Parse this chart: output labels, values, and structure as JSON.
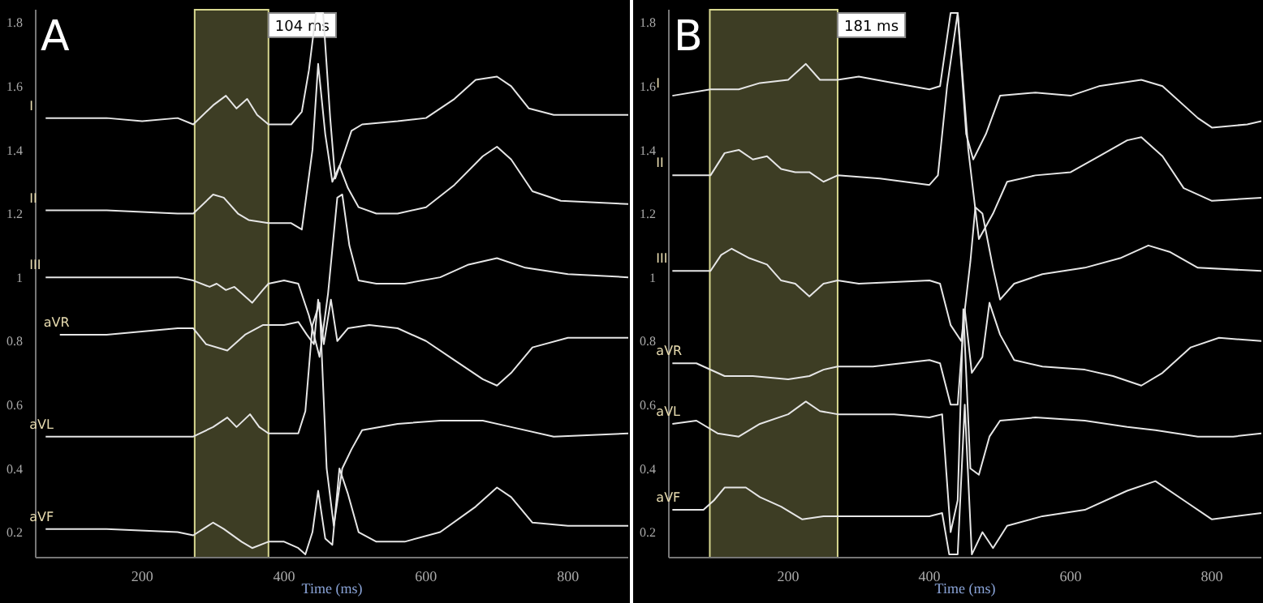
{
  "chart_data": [
    {
      "type": "line",
      "title": "A",
      "xlabel": "Time (ms)",
      "xlim": [
        50,
        885
      ],
      "xticks": [
        200,
        400,
        600,
        800
      ],
      "ylim": [
        0.12,
        1.84
      ],
      "yticks": [
        0.2,
        0.4,
        0.6,
        0.8,
        1,
        1.2,
        1.4,
        1.6,
        1.8
      ],
      "bands": [
        {
          "axis": "x",
          "from": 274,
          "to": 378,
          "label": "104 ms",
          "color": "#3d3d24"
        }
      ],
      "series": [
        {
          "name": "I",
          "color": "#e6e6e6",
          "x": [
            64,
            150,
            200,
            250,
            272,
            300,
            318,
            333,
            348,
            362,
            378,
            410,
            425,
            435,
            445,
            455,
            465,
            472,
            480,
            495,
            510,
            560,
            600,
            640,
            670,
            700,
            720,
            745,
            780,
            830,
            885
          ],
          "values": [
            1.5,
            1.5,
            1.49,
            1.5,
            1.48,
            1.54,
            1.57,
            1.53,
            1.56,
            1.51,
            1.48,
            1.48,
            1.52,
            1.65,
            1.83,
            1.83,
            1.5,
            1.31,
            1.36,
            1.46,
            1.48,
            1.49,
            1.5,
            1.56,
            1.62,
            1.63,
            1.6,
            1.53,
            1.51,
            1.51,
            1.51
          ]
        },
        {
          "name": "II",
          "color": "#e6e6e6",
          "x": [
            64,
            150,
            250,
            272,
            300,
            315,
            335,
            350,
            378,
            410,
            425,
            440,
            448,
            458,
            468,
            478,
            490,
            505,
            530,
            560,
            600,
            640,
            680,
            700,
            720,
            750,
            790,
            885
          ],
          "values": [
            1.21,
            1.21,
            1.2,
            1.2,
            1.26,
            1.25,
            1.2,
            1.18,
            1.17,
            1.17,
            1.15,
            1.4,
            1.67,
            1.45,
            1.3,
            1.35,
            1.28,
            1.22,
            1.2,
            1.2,
            1.22,
            1.29,
            1.38,
            1.41,
            1.37,
            1.27,
            1.24,
            1.23
          ]
        },
        {
          "name": "III",
          "color": "#e6e6e6",
          "x": [
            64,
            150,
            250,
            272,
            295,
            305,
            318,
            330,
            340,
            355,
            370,
            378,
            400,
            420,
            435,
            450,
            462,
            475,
            482,
            492,
            505,
            530,
            570,
            620,
            660,
            700,
            740,
            800,
            885
          ],
          "values": [
            1.0,
            1.0,
            1.0,
            0.99,
            0.97,
            0.98,
            0.96,
            0.97,
            0.95,
            0.92,
            0.96,
            0.98,
            0.99,
            0.98,
            0.88,
            0.75,
            0.95,
            1.25,
            1.26,
            1.1,
            0.99,
            0.98,
            0.98,
            1.0,
            1.04,
            1.06,
            1.03,
            1.01,
            1.0
          ]
        },
        {
          "name": "aVR",
          "color": "#e6e6e6",
          "x": [
            84,
            150,
            250,
            272,
            290,
            320,
            345,
            370,
            400,
            420,
            432,
            442,
            448,
            456,
            466,
            475,
            490,
            520,
            560,
            600,
            640,
            680,
            700,
            720,
            750,
            800,
            885
          ],
          "values": [
            0.82,
            0.82,
            0.84,
            0.84,
            0.79,
            0.77,
            0.82,
            0.85,
            0.85,
            0.86,
            0.82,
            0.79,
            0.93,
            0.79,
            0.93,
            0.8,
            0.84,
            0.85,
            0.84,
            0.8,
            0.74,
            0.68,
            0.66,
            0.7,
            0.78,
            0.81,
            0.81
          ]
        },
        {
          "name": "aVL",
          "color": "#e6e6e6",
          "x": [
            64,
            150,
            250,
            272,
            300,
            320,
            333,
            352,
            365,
            378,
            410,
            420,
            430,
            440,
            450,
            460,
            470,
            482,
            495,
            510,
            560,
            620,
            680,
            720,
            780,
            885
          ],
          "values": [
            0.5,
            0.5,
            0.5,
            0.5,
            0.53,
            0.56,
            0.53,
            0.57,
            0.53,
            0.51,
            0.51,
            0.51,
            0.58,
            0.85,
            0.92,
            0.4,
            0.22,
            0.4,
            0.46,
            0.52,
            0.54,
            0.55,
            0.55,
            0.53,
            0.5,
            0.51
          ]
        },
        {
          "name": "aVF",
          "color": "#e6e6e6",
          "x": [
            64,
            150,
            250,
            272,
            300,
            315,
            340,
            355,
            378,
            400,
            420,
            430,
            440,
            448,
            458,
            468,
            478,
            490,
            505,
            530,
            570,
            620,
            670,
            700,
            720,
            750,
            800,
            885
          ],
          "values": [
            0.21,
            0.21,
            0.2,
            0.19,
            0.23,
            0.21,
            0.17,
            0.15,
            0.17,
            0.17,
            0.15,
            0.13,
            0.2,
            0.33,
            0.18,
            0.16,
            0.4,
            0.32,
            0.2,
            0.17,
            0.17,
            0.2,
            0.28,
            0.34,
            0.31,
            0.23,
            0.22,
            0.22
          ]
        }
      ]
    },
    {
      "type": "line",
      "title": "B",
      "xlabel": "Time (ms)",
      "xlim": [
        31,
        870
      ],
      "xticks": [
        200,
        400,
        600,
        800
      ],
      "ylim": [
        0.12,
        1.84
      ],
      "yticks": [
        0.2,
        0.4,
        0.6,
        0.8,
        1,
        1.2,
        1.4,
        1.6,
        1.8
      ],
      "bands": [
        {
          "axis": "x",
          "from": 89,
          "to": 270,
          "label": "181 ms",
          "color": "#3d3d24"
        }
      ],
      "series": [
        {
          "name": "I",
          "color": "#e6e6e6",
          "x": [
            36,
            90,
            130,
            160,
            200,
            225,
            245,
            270,
            300,
            350,
            400,
            415,
            430,
            440,
            452,
            462,
            480,
            500,
            550,
            600,
            640,
            700,
            730,
            780,
            800,
            850,
            870
          ],
          "values": [
            1.57,
            1.59,
            1.59,
            1.61,
            1.62,
            1.67,
            1.62,
            1.62,
            1.63,
            1.61,
            1.59,
            1.6,
            1.83,
            1.83,
            1.45,
            1.37,
            1.45,
            1.57,
            1.58,
            1.57,
            1.6,
            1.62,
            1.6,
            1.5,
            1.47,
            1.48,
            1.49
          ]
        },
        {
          "name": "II",
          "color": "#e6e6e6",
          "x": [
            36,
            90,
            110,
            130,
            150,
            170,
            190,
            210,
            230,
            250,
            270,
            330,
            400,
            412,
            425,
            440,
            455,
            470,
            490,
            510,
            550,
            600,
            640,
            680,
            700,
            730,
            760,
            800,
            870
          ],
          "values": [
            1.32,
            1.32,
            1.39,
            1.4,
            1.37,
            1.38,
            1.34,
            1.33,
            1.33,
            1.3,
            1.32,
            1.31,
            1.29,
            1.32,
            1.6,
            1.83,
            1.4,
            1.12,
            1.2,
            1.3,
            1.32,
            1.33,
            1.38,
            1.43,
            1.44,
            1.38,
            1.28,
            1.24,
            1.25
          ]
        },
        {
          "name": "III",
          "color": "#e6e6e6",
          "x": [
            36,
            90,
            105,
            120,
            145,
            170,
            190,
            210,
            230,
            250,
            270,
            300,
            400,
            415,
            430,
            445,
            458,
            465,
            475,
            490,
            500,
            520,
            560,
            620,
            670,
            710,
            740,
            780,
            870
          ],
          "values": [
            1.02,
            1.02,
            1.07,
            1.09,
            1.06,
            1.04,
            0.99,
            0.98,
            0.94,
            0.98,
            0.99,
            0.98,
            0.99,
            0.98,
            0.85,
            0.8,
            1.05,
            1.22,
            1.2,
            1.03,
            0.93,
            0.98,
            1.01,
            1.03,
            1.06,
            1.1,
            1.08,
            1.03,
            1.02
          ]
        },
        {
          "name": "aVR",
          "color": "#e6e6e6",
          "x": [
            36,
            70,
            110,
            150,
            200,
            230,
            250,
            270,
            320,
            400,
            415,
            430,
            440,
            450,
            460,
            475,
            485,
            500,
            520,
            560,
            620,
            660,
            700,
            730,
            770,
            810,
            870
          ],
          "values": [
            0.73,
            0.73,
            0.69,
            0.69,
            0.68,
            0.69,
            0.71,
            0.72,
            0.72,
            0.74,
            0.73,
            0.6,
            0.6,
            0.9,
            0.7,
            0.75,
            0.92,
            0.82,
            0.74,
            0.72,
            0.71,
            0.69,
            0.66,
            0.7,
            0.78,
            0.81,
            0.8
          ]
        },
        {
          "name": "aVL",
          "color": "#e6e6e6",
          "x": [
            36,
            70,
            100,
            130,
            160,
            200,
            225,
            245,
            270,
            350,
            400,
            418,
            430,
            440,
            448,
            458,
            470,
            485,
            500,
            550,
            620,
            680,
            720,
            780,
            830,
            870
          ],
          "values": [
            0.54,
            0.55,
            0.51,
            0.5,
            0.54,
            0.57,
            0.61,
            0.58,
            0.57,
            0.57,
            0.56,
            0.57,
            0.2,
            0.3,
            0.9,
            0.4,
            0.38,
            0.5,
            0.55,
            0.56,
            0.55,
            0.53,
            0.52,
            0.5,
            0.5,
            0.51
          ]
        },
        {
          "name": "aVF",
          "color": "#e6e6e6",
          "x": [
            36,
            80,
            95,
            110,
            140,
            160,
            190,
            220,
            250,
            270,
            330,
            400,
            418,
            428,
            440,
            450,
            460,
            475,
            490,
            510,
            560,
            620,
            680,
            720,
            760,
            800,
            870
          ],
          "values": [
            0.27,
            0.27,
            0.3,
            0.34,
            0.34,
            0.31,
            0.28,
            0.24,
            0.25,
            0.25,
            0.25,
            0.25,
            0.26,
            0.13,
            0.13,
            0.6,
            0.13,
            0.2,
            0.15,
            0.22,
            0.25,
            0.27,
            0.33,
            0.36,
            0.3,
            0.24,
            0.26
          ]
        }
      ]
    }
  ]
}
